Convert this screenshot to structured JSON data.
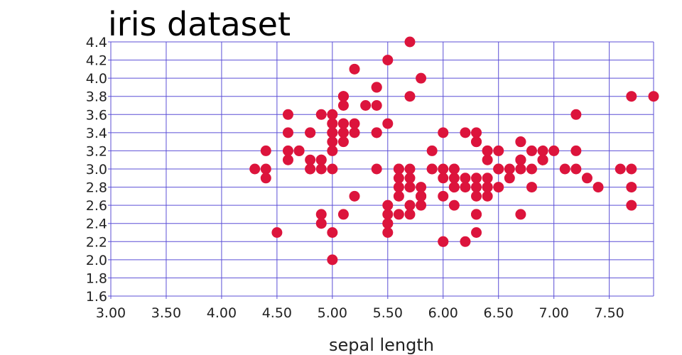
{
  "chart_data": {
    "type": "scatter",
    "title": "iris dataset",
    "xlabel": "sepal length",
    "ylabel": "",
    "xlim": [
      3.0,
      7.9
    ],
    "ylim": [
      1.6,
      4.4
    ],
    "x_ticks": [
      3.0,
      3.5,
      4.0,
      4.5,
      5.0,
      5.5,
      6.0,
      6.5,
      7.0,
      7.5
    ],
    "x_tick_labels": [
      "3.00",
      "3.50",
      "4.00",
      "4.50",
      "5.00",
      "5.50",
      "6.00",
      "6.50",
      "7.00",
      "7.50"
    ],
    "y_ticks": [
      1.6,
      1.8,
      2.0,
      2.2,
      2.4,
      2.6,
      2.8,
      3.0,
      3.2,
      3.4,
      3.6,
      3.8,
      4.0,
      4.2,
      4.4
    ],
    "y_tick_labels": [
      "1.6",
      "1.8",
      "2.0",
      "2.2",
      "2.4",
      "2.6",
      "2.8",
      "3.0",
      "3.2",
      "3.4",
      "3.6",
      "3.8",
      "4.0",
      "4.2",
      "4.4"
    ],
    "grid": true,
    "colors": {
      "point": "#dc143c",
      "grid": "#5b4fd6"
    },
    "points": [
      [
        5.1,
        3.5
      ],
      [
        4.9,
        3.0
      ],
      [
        4.7,
        3.2
      ],
      [
        4.6,
        3.1
      ],
      [
        5.0,
        3.6
      ],
      [
        5.4,
        3.9
      ],
      [
        4.6,
        3.4
      ],
      [
        5.0,
        3.4
      ],
      [
        4.4,
        2.9
      ],
      [
        4.9,
        3.1
      ],
      [
        5.4,
        3.7
      ],
      [
        4.8,
        3.4
      ],
      [
        4.8,
        3.0
      ],
      [
        4.3,
        3.0
      ],
      [
        5.8,
        4.0
      ],
      [
        5.7,
        4.4
      ],
      [
        5.4,
        3.9
      ],
      [
        5.1,
        3.5
      ],
      [
        5.7,
        3.8
      ],
      [
        5.1,
        3.8
      ],
      [
        5.4,
        3.4
      ],
      [
        5.1,
        3.7
      ],
      [
        4.6,
        3.6
      ],
      [
        5.1,
        3.3
      ],
      [
        4.8,
        3.4
      ],
      [
        5.0,
        3.0
      ],
      [
        5.0,
        3.4
      ],
      [
        5.2,
        3.5
      ],
      [
        5.2,
        3.4
      ],
      [
        4.7,
        3.2
      ],
      [
        4.8,
        3.1
      ],
      [
        5.4,
        3.4
      ],
      [
        5.2,
        4.1
      ],
      [
        5.5,
        4.2
      ],
      [
        4.9,
        3.1
      ],
      [
        5.0,
        3.2
      ],
      [
        5.5,
        3.5
      ],
      [
        4.9,
        3.6
      ],
      [
        4.4,
        3.0
      ],
      [
        5.1,
        3.4
      ],
      [
        5.0,
        3.5
      ],
      [
        4.5,
        2.3
      ],
      [
        4.4,
        3.2
      ],
      [
        5.0,
        3.5
      ],
      [
        5.1,
        3.8
      ],
      [
        4.8,
        3.0
      ],
      [
        5.1,
        3.8
      ],
      [
        4.6,
        3.2
      ],
      [
        5.3,
        3.7
      ],
      [
        5.0,
        3.3
      ],
      [
        7.0,
        3.2
      ],
      [
        6.4,
        3.2
      ],
      [
        6.9,
        3.1
      ],
      [
        5.5,
        2.3
      ],
      [
        6.5,
        2.8
      ],
      [
        5.7,
        2.8
      ],
      [
        6.3,
        3.3
      ],
      [
        4.9,
        2.4
      ],
      [
        6.6,
        2.9
      ],
      [
        5.2,
        2.7
      ],
      [
        5.0,
        2.0
      ],
      [
        5.9,
        3.0
      ],
      [
        6.0,
        2.2
      ],
      [
        6.1,
        2.9
      ],
      [
        5.6,
        2.9
      ],
      [
        6.7,
        3.1
      ],
      [
        5.6,
        3.0
      ],
      [
        5.8,
        2.7
      ],
      [
        6.2,
        2.2
      ],
      [
        5.6,
        2.5
      ],
      [
        5.9,
        3.2
      ],
      [
        6.1,
        2.8
      ],
      [
        6.3,
        2.5
      ],
      [
        6.1,
        2.8
      ],
      [
        6.4,
        2.9
      ],
      [
        6.6,
        3.0
      ],
      [
        6.8,
        2.8
      ],
      [
        6.7,
        3.0
      ],
      [
        6.0,
        2.9
      ],
      [
        5.7,
        2.6
      ],
      [
        5.5,
        2.4
      ],
      [
        5.5,
        2.4
      ],
      [
        5.8,
        2.7
      ],
      [
        6.0,
        2.7
      ],
      [
        5.4,
        3.0
      ],
      [
        6.0,
        3.4
      ],
      [
        6.7,
        3.1
      ],
      [
        6.3,
        2.3
      ],
      [
        5.6,
        3.0
      ],
      [
        5.5,
        2.5
      ],
      [
        5.5,
        2.6
      ],
      [
        6.1,
        3.0
      ],
      [
        5.8,
        2.6
      ],
      [
        5.0,
        2.3
      ],
      [
        5.6,
        2.7
      ],
      [
        5.7,
        3.0
      ],
      [
        5.7,
        2.9
      ],
      [
        6.2,
        2.9
      ],
      [
        5.1,
        2.5
      ],
      [
        5.7,
        2.8
      ],
      [
        6.3,
        3.3
      ],
      [
        5.8,
        2.7
      ],
      [
        7.1,
        3.0
      ],
      [
        6.3,
        2.9
      ],
      [
        6.5,
        3.0
      ],
      [
        7.6,
        3.0
      ],
      [
        4.9,
        2.5
      ],
      [
        7.3,
        2.9
      ],
      [
        6.7,
        2.5
      ],
      [
        7.2,
        3.6
      ],
      [
        6.5,
        3.2
      ],
      [
        6.4,
        2.7
      ],
      [
        6.8,
        3.0
      ],
      [
        5.7,
        2.5
      ],
      [
        5.8,
        2.8
      ],
      [
        6.4,
        3.2
      ],
      [
        6.5,
        3.0
      ],
      [
        7.7,
        3.8
      ],
      [
        7.7,
        2.6
      ],
      [
        6.0,
        2.2
      ],
      [
        6.9,
        3.2
      ],
      [
        5.6,
        2.8
      ],
      [
        7.7,
        2.8
      ],
      [
        6.3,
        2.7
      ],
      [
        6.7,
        3.3
      ],
      [
        7.2,
        3.2
      ],
      [
        6.2,
        2.8
      ],
      [
        6.1,
        3.0
      ],
      [
        6.4,
        2.8
      ],
      [
        7.2,
        3.0
      ],
      [
        7.4,
        2.8
      ],
      [
        7.9,
        3.8
      ],
      [
        6.4,
        2.8
      ],
      [
        6.3,
        2.8
      ],
      [
        6.1,
        2.6
      ],
      [
        7.7,
        3.0
      ],
      [
        6.3,
        3.4
      ],
      [
        6.4,
        3.1
      ],
      [
        6.0,
        3.0
      ],
      [
        6.9,
        3.1
      ],
      [
        6.7,
        3.1
      ],
      [
        6.9,
        3.1
      ],
      [
        5.8,
        2.7
      ],
      [
        6.8,
        3.2
      ],
      [
        6.7,
        3.3
      ],
      [
        6.7,
        3.0
      ],
      [
        6.3,
        2.5
      ],
      [
        6.5,
        3.0
      ],
      [
        6.2,
        3.4
      ],
      [
        5.9,
        3.0
      ]
    ]
  }
}
